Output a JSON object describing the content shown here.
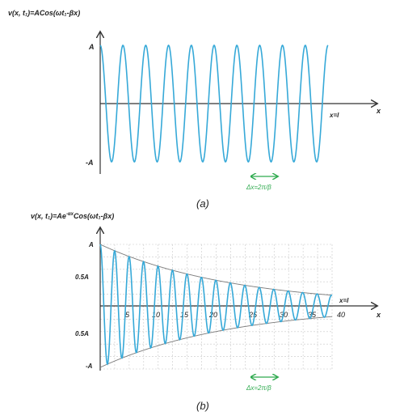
{
  "panel_a": {
    "equation": "v(x, t₁)=ACos(ωt₁-βx)",
    "y_top_label": "A",
    "y_bottom_label": "-A",
    "x_axis_label": "x",
    "end_marker_label": "x=l",
    "wavelength_label": "Δx=2π/β",
    "caption": "(a)"
  },
  "panel_b": {
    "equation_prefix": "v(x, t₁)=Ae",
    "equation_exponent": "-αx",
    "equation_suffix": "Cos(ωt₁-βx)",
    "y_labels": [
      "A",
      "0.5A",
      "0.5A",
      "-A"
    ],
    "x_axis_label": "x",
    "end_marker_label": "x=l",
    "x_ticks": [
      "5",
      "10",
      "15",
      "20",
      "25",
      "30",
      "35",
      "40"
    ],
    "wavelength_label": "Δx=2π/β",
    "caption": "(b)"
  },
  "colors": {
    "wave": "#36a9d8",
    "envelope": "#7a7a7a",
    "axis": "#333333",
    "grid": "#c8c8c8",
    "marker": "#2eaa4e"
  }
}
